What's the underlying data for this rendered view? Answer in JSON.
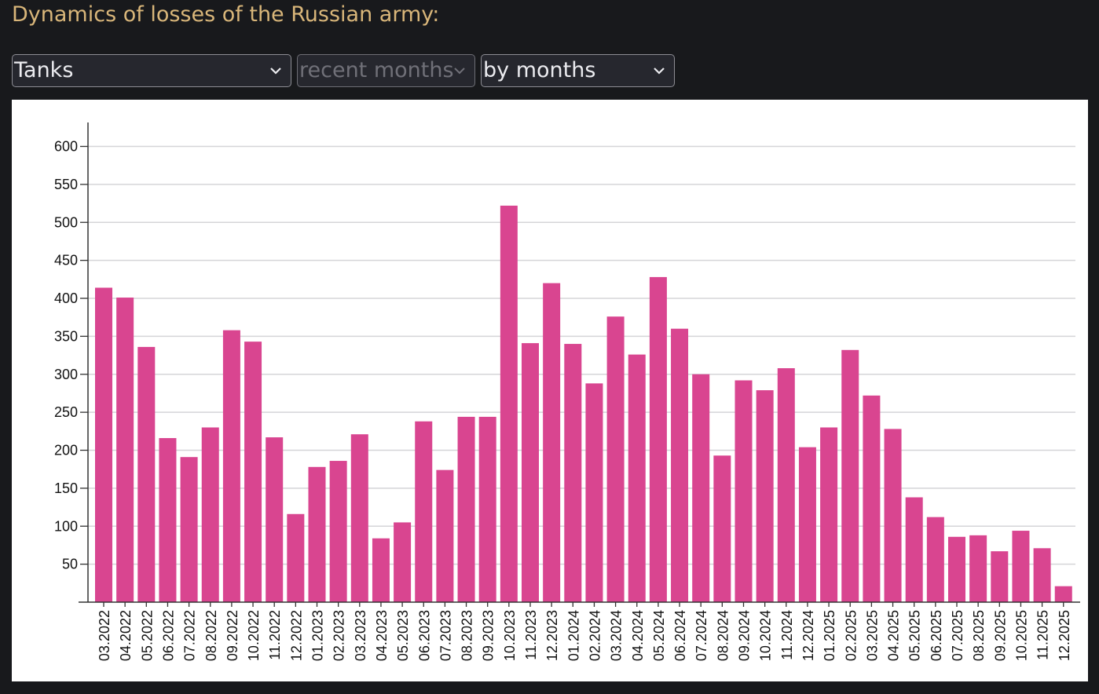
{
  "header": {
    "title": "Dynamics of losses of the Russian army:"
  },
  "controls": {
    "category": "Tanks",
    "range": "recent months",
    "period": "by months"
  },
  "icons": {
    "dropdown": "chevron-down-icon"
  },
  "colors": {
    "bar": "#d94590",
    "background": "#18191c",
    "title": "#d9b67a"
  },
  "chart_data": {
    "type": "bar",
    "title": "",
    "xlabel": "",
    "ylabel": "",
    "ylim": [
      0,
      630
    ],
    "yticks": [
      50,
      100,
      150,
      200,
      250,
      300,
      350,
      400,
      450,
      500,
      550,
      600
    ],
    "grid": true,
    "categories": [
      "03.2022",
      "04.2022",
      "05.2022",
      "06.2022",
      "07.2022",
      "08.2022",
      "09.2022",
      "10.2022",
      "11.2022",
      "12.2022",
      "01.2023",
      "02.2023",
      "03.2023",
      "04.2023",
      "05.2023",
      "06.2023",
      "07.2023",
      "08.2023",
      "09.2023",
      "10.2023",
      "11.2023",
      "12.2023",
      "01.2024",
      "02.2024",
      "03.2024",
      "04.2024",
      "05.2024",
      "06.2024",
      "07.2024",
      "08.2024",
      "09.2024",
      "10.2024",
      "11.2024",
      "12.2024",
      "01.2025",
      "02.2025",
      "03.2025",
      "04.2025",
      "05.2025",
      "06.2025",
      "07.2025",
      "08.2025",
      "09.2025",
      "10.2025",
      "11.2025",
      "12.2025"
    ],
    "values": [
      414,
      401,
      336,
      216,
      191,
      230,
      358,
      343,
      217,
      116,
      178,
      186,
      221,
      84,
      105,
      238,
      174,
      244,
      244,
      522,
      341,
      420,
      340,
      288,
      376,
      326,
      428,
      360,
      300,
      193,
      292,
      279,
      308,
      204,
      230,
      332,
      272,
      228,
      138,
      112,
      86,
      88,
      67,
      94,
      71,
      21
    ]
  }
}
